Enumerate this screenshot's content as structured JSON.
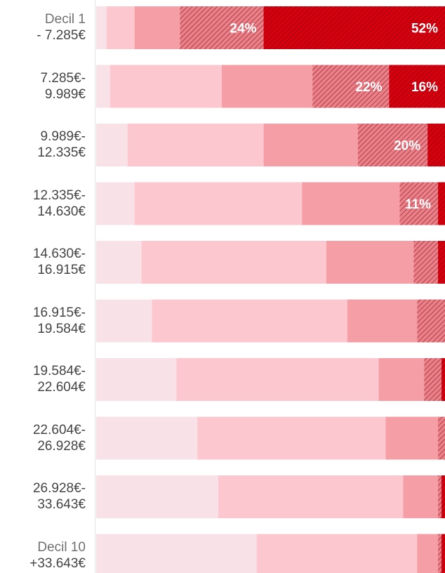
{
  "chart_data": {
    "type": "bar",
    "orientation": "horizontal",
    "stacked": true,
    "categories": [
      [
        "Decil 1",
        "- 7.285€"
      ],
      [
        "7.285€-",
        "9.989€"
      ],
      [
        "9.989€-",
        "12.335€"
      ],
      [
        "12.335€-",
        "14.630€"
      ],
      [
        "14.630€-",
        "16.915€"
      ],
      [
        "16.915€-",
        "19.584€"
      ],
      [
        "19.584€-",
        "22.604€"
      ],
      [
        "22.604€-",
        "26.928€"
      ],
      [
        "26.928€-",
        "33.643€"
      ],
      [
        "Decil 10",
        "+33.643€"
      ]
    ],
    "series": [
      {
        "color": "#f9e1e8",
        "pattern": "none",
        "values": [
          3,
          4,
          9,
          11,
          13,
          16,
          23,
          29,
          35,
          46
        ]
      },
      {
        "color": "#fcc7cf",
        "pattern": "none",
        "values": [
          8,
          32,
          39,
          48,
          53,
          56,
          58,
          54,
          53,
          46
        ]
      },
      {
        "color": "#f69ea5",
        "pattern": "none",
        "values": [
          13,
          26,
          27,
          28,
          25,
          20,
          13,
          15,
          10,
          6
        ]
      },
      {
        "color": "#ee7f88",
        "pattern": "hatch",
        "values": [
          24,
          22,
          20,
          11,
          7,
          8,
          5,
          2,
          1,
          1
        ]
      },
      {
        "color": "#d8000f",
        "pattern": "hatch",
        "values": [
          52,
          16,
          5,
          2,
          2,
          0,
          1,
          0,
          1,
          1
        ]
      }
    ],
    "data_labels": [
      {
        "row": 0,
        "series": 3,
        "text": "24%"
      },
      {
        "row": 0,
        "series": 4,
        "text": "52%"
      },
      {
        "row": 1,
        "series": 3,
        "text": "22%"
      },
      {
        "row": 1,
        "series": 4,
        "text": "16%"
      },
      {
        "row": 2,
        "series": 3,
        "text": "20%"
      },
      {
        "row": 3,
        "series": 3,
        "text": "11%"
      }
    ],
    "x_unit": "%",
    "xlim": [
      0,
      100
    ],
    "title": "",
    "xlabel": "",
    "ylabel": "",
    "grid": false,
    "legend": "none"
  }
}
